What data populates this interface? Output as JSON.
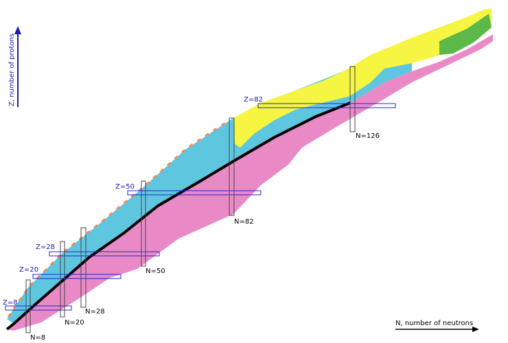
{
  "axes": {
    "y_label": "Z, number of protons",
    "x_label": "N, number of neutrons"
  },
  "magic_numbers": {
    "protons": [
      "Z=8",
      "Z=20",
      "Z=28",
      "Z=50",
      "Z=82"
    ],
    "neutrons": [
      "N=8",
      "N=20",
      "N=28",
      "N=50",
      "N=82",
      "N=126"
    ]
  }
}
